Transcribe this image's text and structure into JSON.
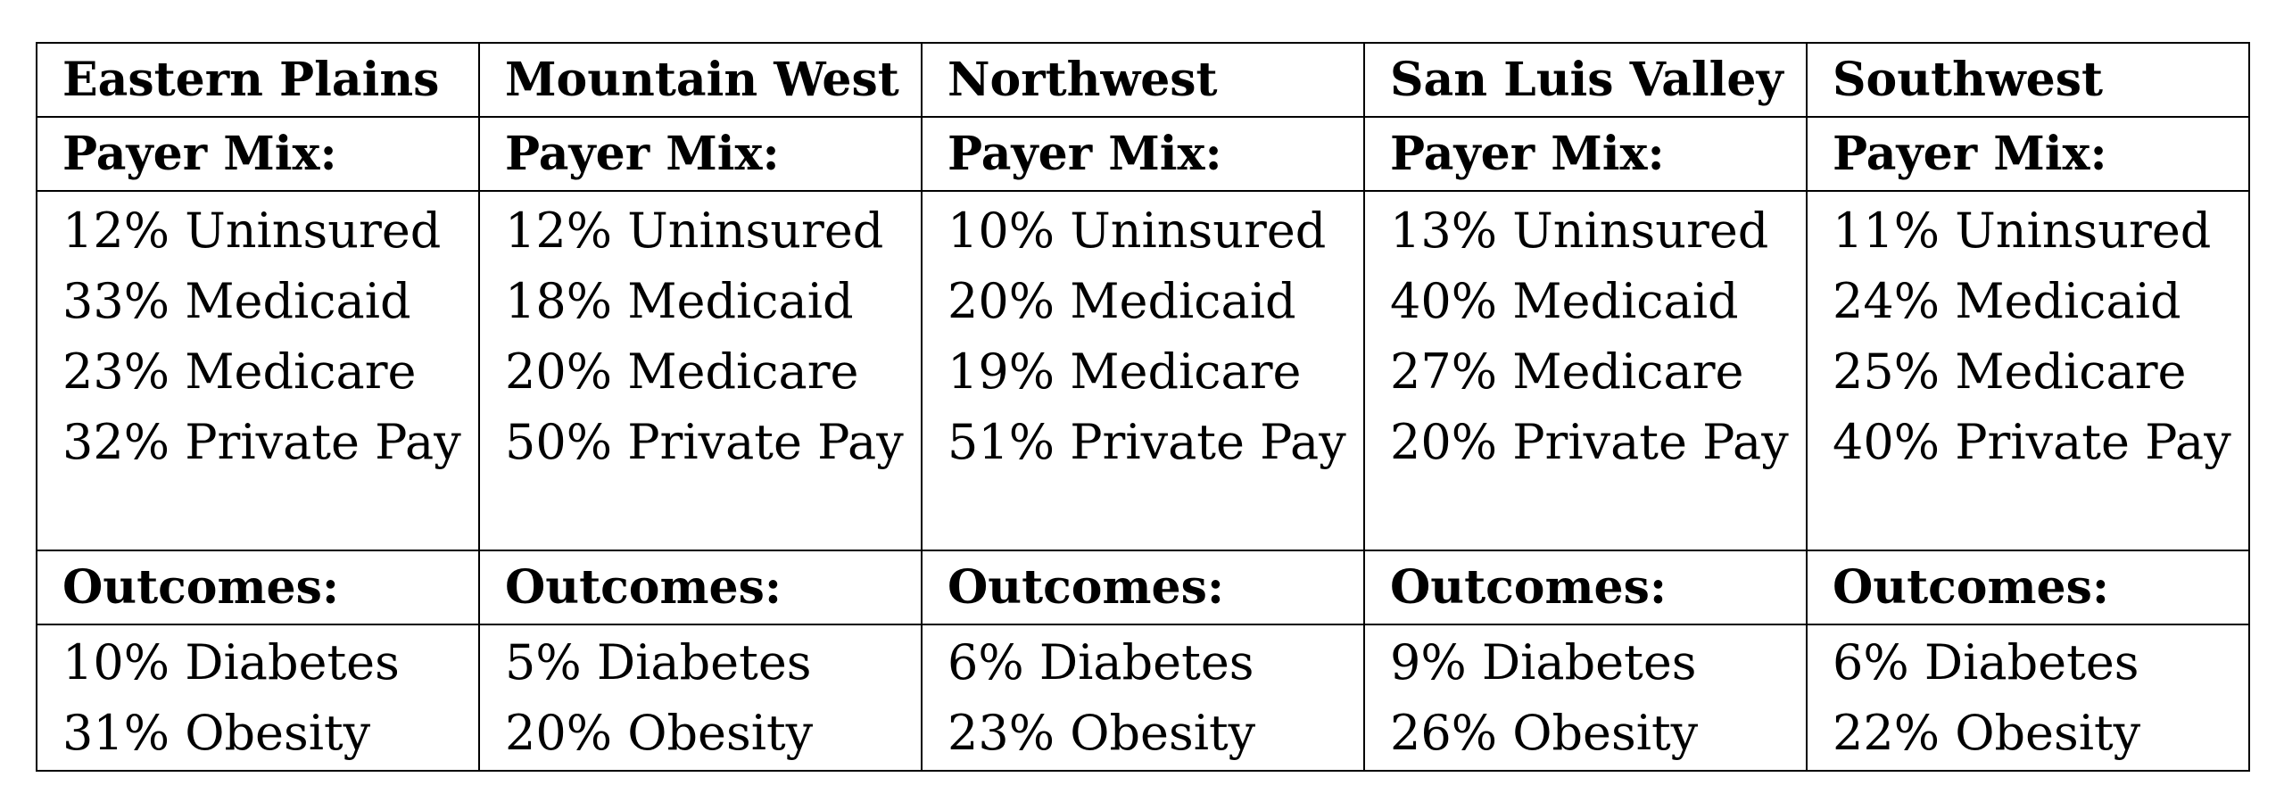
{
  "regions": [
    {
      "name": "Eastern Plains",
      "payer_heading": "Payer Mix:",
      "payer_mix": [
        "12% Uninsured",
        "33% Medicaid",
        "23% Medicare",
        "32% Private Pay"
      ],
      "outcomes_heading": "Outcomes:",
      "outcomes": [
        "10% Diabetes",
        "31% Obesity"
      ]
    },
    {
      "name": "Mountain West",
      "payer_heading": "Payer Mix:",
      "payer_mix": [
        "12% Uninsured",
        "18% Medicaid",
        "20% Medicare",
        "50% Private Pay"
      ],
      "outcomes_heading": "Outcomes:",
      "outcomes": [
        "5% Diabetes",
        "20% Obesity"
      ]
    },
    {
      "name": "Northwest",
      "payer_heading": "Payer Mix:",
      "payer_mix": [
        "10% Uninsured",
        "20% Medicaid",
        "19% Medicare",
        "51% Private Pay"
      ],
      "outcomes_heading": "Outcomes:",
      "outcomes": [
        "6% Diabetes",
        "23% Obesity"
      ]
    },
    {
      "name": "San Luis Valley",
      "payer_heading": "Payer Mix:",
      "payer_mix": [
        "13% Uninsured",
        "40% Medicaid",
        "27% Medicare",
        "20% Private Pay"
      ],
      "outcomes_heading": "Outcomes:",
      "outcomes": [
        "9% Diabetes",
        "26% Obesity"
      ]
    },
    {
      "name": "Southwest",
      "payer_heading": "Payer Mix:",
      "payer_mix": [
        "11% Uninsured",
        "24% Medicaid",
        "25% Medicare",
        "40% Private Pay"
      ],
      "outcomes_heading": "Outcomes:",
      "outcomes": [
        "6% Diabetes",
        "22% Obesity"
      ]
    }
  ]
}
